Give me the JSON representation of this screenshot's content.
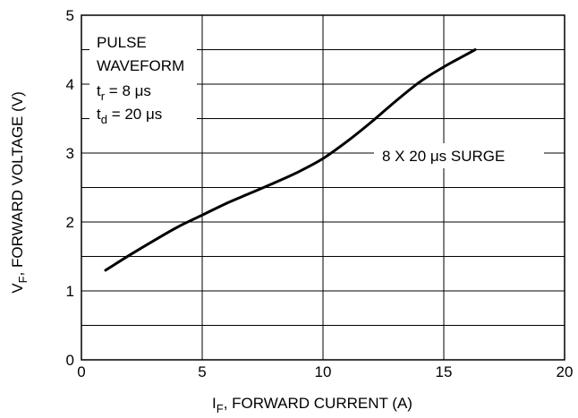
{
  "chart_data": {
    "type": "line",
    "title": "",
    "xlabel": {
      "main": "I",
      "sub": "F",
      "rest": ", FORWARD CURRENT (A)"
    },
    "ylabel": {
      "main": "V",
      "sub": "F",
      "rest": ", FORWARD VOLTAGE (V)"
    },
    "xlim": [
      0,
      20
    ],
    "ylim": [
      0,
      5
    ],
    "x_ticks": [
      "0",
      "5",
      "10",
      "15",
      "20"
    ],
    "y_ticks": [
      "0",
      "1",
      "2",
      "3",
      "4",
      "5"
    ],
    "grid": {
      "x_major_step": 5,
      "y_minor_step": 0.5
    },
    "legend_box": {
      "line1": "PULSE",
      "line2": "WAVEFORM",
      "tr": {
        "t": "t",
        "sub": "r",
        "rest": " = 8 μs"
      },
      "td": {
        "t": "t",
        "sub": "d",
        "rest": " = 20 μs"
      }
    },
    "series": [
      {
        "name": "8 X 20 μs SURGE",
        "x": [
          1.0,
          2.0,
          3.0,
          4.0,
          5.0,
          6.0,
          7.0,
          8.0,
          9.0,
          10.0,
          11.0,
          12.0,
          13.0,
          14.0,
          15.0,
          16.3
        ],
        "y": [
          1.3,
          1.52,
          1.73,
          1.93,
          2.1,
          2.27,
          2.42,
          2.57,
          2.73,
          2.92,
          3.17,
          3.45,
          3.75,
          4.03,
          4.25,
          4.5
        ]
      }
    ]
  },
  "colors": {
    "line": "#000000",
    "grid": "#000000",
    "background": "#ffffff"
  }
}
